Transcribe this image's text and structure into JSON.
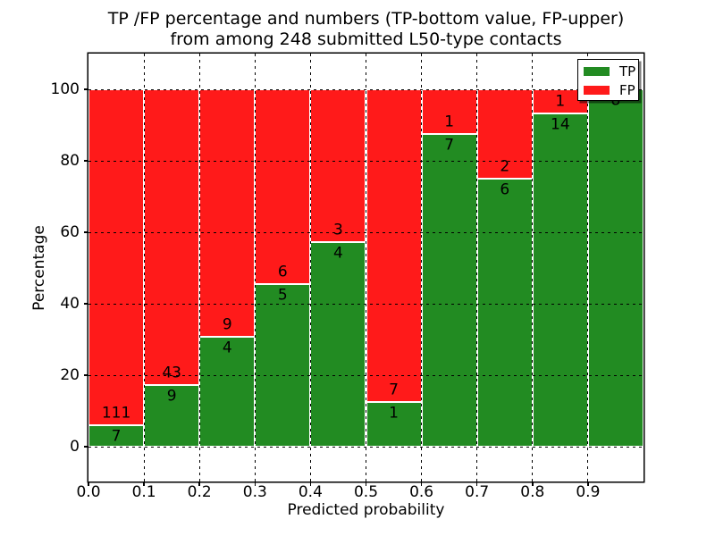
{
  "title": {
    "line1": "TP /FP percentage and numbers (TP-bottom value, FP-upper)",
    "line2": "from among 248 submitted L50-type contacts"
  },
  "chart_data": {
    "type": "bar",
    "stacked": true,
    "normalized_to_percent": true,
    "title": "TP /FP percentage and numbers (TP-bottom value, FP-upper) from among 248 submitted L50-type contacts",
    "xlabel": "Predicted probability",
    "ylabel": "Percentage",
    "xlim": [
      0.0,
      1.0
    ],
    "ylim": [
      -10,
      110
    ],
    "bin_width": 0.1,
    "grid": "dotted black, horizontal at y-ticks and vertical at bin edges",
    "xtick_labels": [
      "0.0",
      "0.1",
      "0.2",
      "0.3",
      "0.4",
      "0.5",
      "0.6",
      "0.7",
      "0.8",
      "0.9"
    ],
    "ytick_values": [
      0,
      20,
      40,
      60,
      80,
      100
    ],
    "categories": [
      "0.0-0.1",
      "0.1-0.2",
      "0.2-0.3",
      "0.3-0.4",
      "0.4-0.5",
      "0.5-0.6",
      "0.6-0.7",
      "0.7-0.8",
      "0.8-0.9",
      "0.9-1.0"
    ],
    "series": [
      {
        "name": "TP",
        "color": "#228b22",
        "counts": [
          7,
          9,
          4,
          5,
          4,
          1,
          7,
          6,
          14,
          8
        ]
      },
      {
        "name": "FP",
        "color": "#ff1a1a",
        "counts": [
          111,
          43,
          9,
          6,
          3,
          7,
          1,
          2,
          1,
          0
        ]
      }
    ],
    "tp_percentages": [
      5.93,
      17.31,
      30.77,
      45.45,
      57.14,
      12.5,
      87.5,
      75.0,
      93.33,
      100.0
    ],
    "legend": {
      "position": "upper right",
      "entries": [
        {
          "label": "TP",
          "color": "#228b22"
        },
        {
          "label": "FP",
          "color": "#ff1a1a"
        }
      ]
    }
  }
}
